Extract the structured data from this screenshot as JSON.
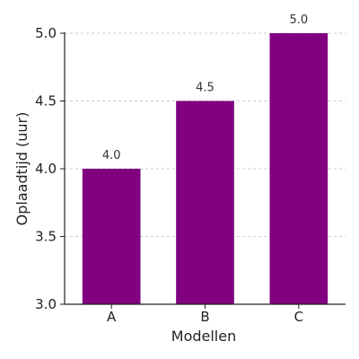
{
  "chart_data": {
    "type": "bar",
    "categories": [
      "A",
      "B",
      "C"
    ],
    "values": [
      4.0,
      4.5,
      5.0
    ],
    "data_labels": [
      "4.0",
      "4.5",
      "5.0"
    ],
    "xlabel": "Modellen",
    "ylabel": "Oplaadtijd (uur)",
    "ylim": [
      3.0,
      5.0
    ],
    "yticks": [
      3.0,
      3.5,
      4.0,
      4.5,
      5.0
    ],
    "ytick_labels": [
      "3.0",
      "3.5",
      "4.0",
      "4.5",
      "5.0"
    ],
    "grid": "horizontal-dashed",
    "bar_color": "#800080",
    "grid_color": "#bbbbbb",
    "axis_color": "#222222"
  }
}
